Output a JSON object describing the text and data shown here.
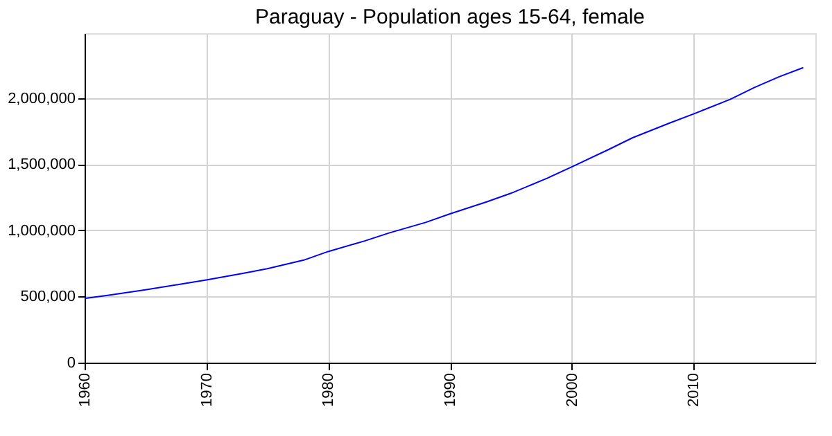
{
  "chart_data": {
    "type": "line",
    "title": "Paraguay - Population ages 15-64, female",
    "x": [
      1960,
      1962,
      1965,
      1968,
      1970,
      1973,
      1975,
      1978,
      1980,
      1983,
      1985,
      1988,
      1990,
      1993,
      1995,
      1998,
      2000,
      2003,
      2005,
      2008,
      2010,
      2013,
      2015,
      2017,
      2019
    ],
    "series": [
      {
        "color": "#0000ff",
        "values": [
          485000,
          510000,
          550000,
          595000,
          625000,
          675000,
          710000,
          775000,
          840000,
          920000,
          980000,
          1060000,
          1125000,
          1215000,
          1280000,
          1395000,
          1480000,
          1610000,
          1700000,
          1810000,
          1880000,
          1990000,
          2080000,
          2160000,
          2230000
        ]
      }
    ],
    "xlim": [
      1960,
      2020
    ],
    "xticks": [
      1960,
      1970,
      1980,
      1990,
      2000,
      2010
    ],
    "ylim": [
      0,
      2490000
    ],
    "yticks": [
      {
        "value": 0,
        "label": "0"
      },
      {
        "value": 500000,
        "label": "500,000"
      },
      {
        "value": 1000000,
        "label": "1,000,000"
      },
      {
        "value": 1500000,
        "label": "1,500,000"
      },
      {
        "value": 2000000,
        "label": "2,000,000"
      }
    ],
    "grid": true,
    "line_style": "solid",
    "marker": "none"
  }
}
